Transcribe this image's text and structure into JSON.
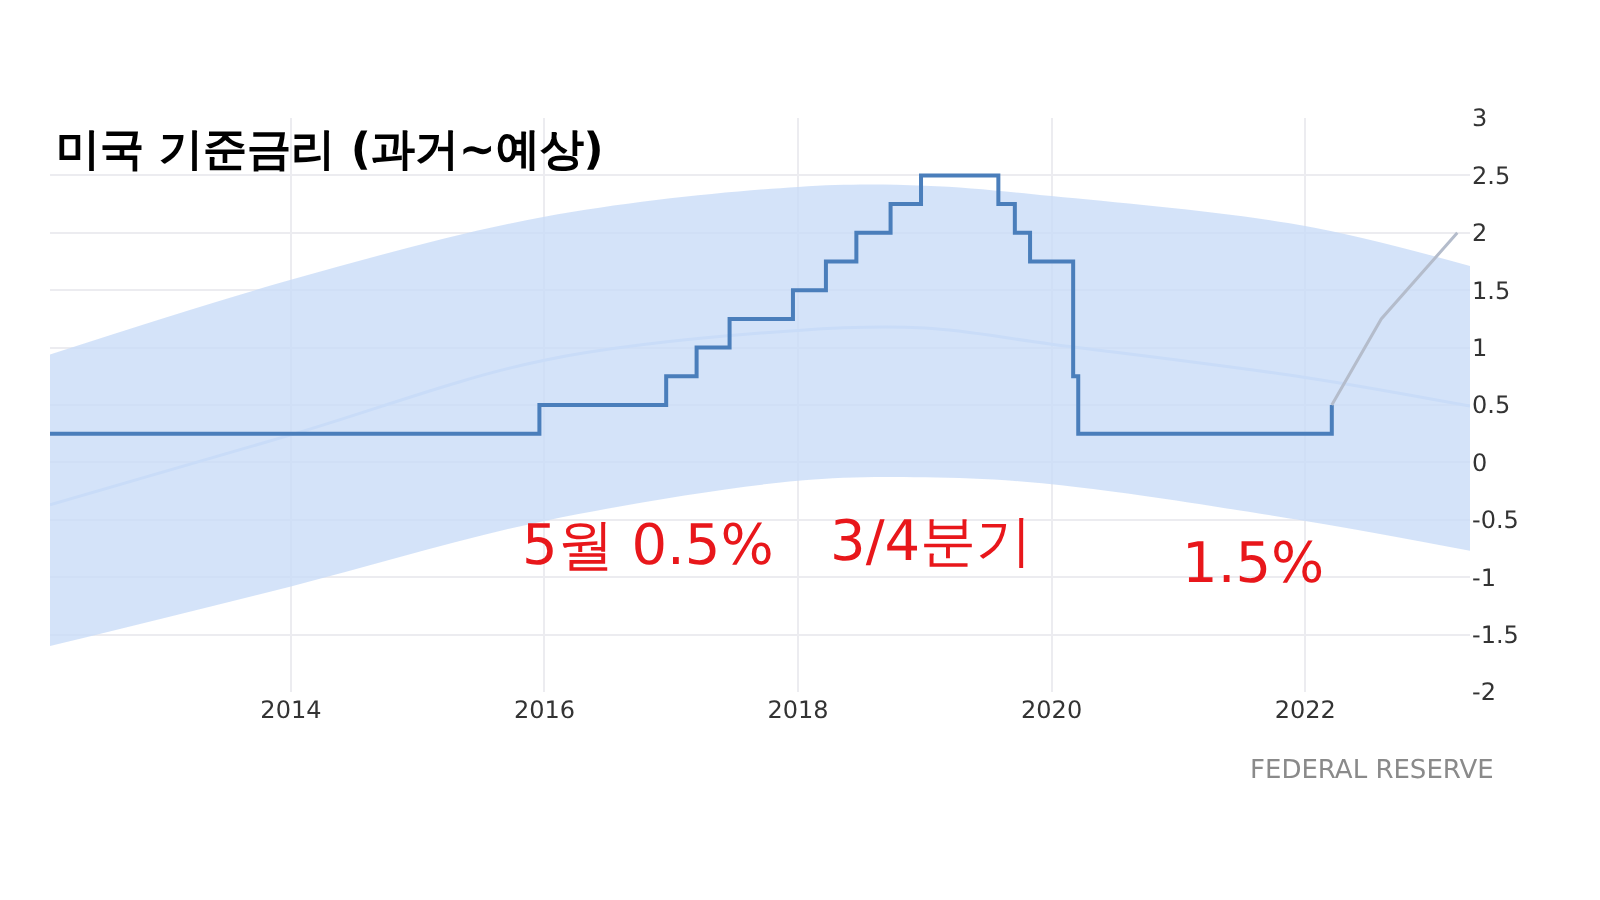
{
  "chart_data": {
    "type": "line",
    "title": "미국 기준금리 (과거~예상)",
    "xlim": [
      2012.1,
      2023.3
    ],
    "xticks": [
      2014,
      2016,
      2018,
      2020,
      2022
    ],
    "ylim": [
      -2,
      3
    ],
    "yticks": [
      -2,
      -1.5,
      -1,
      -0.5,
      0,
      0.5,
      1,
      1.5,
      2,
      2.5,
      3
    ],
    "grid": true,
    "series": [
      {
        "color": "#c9dcf8",
        "x": [
          2012.1,
          2014,
          2016,
          2018,
          2019,
          2020,
          2022,
          2023.3
        ],
        "values": [
          -0.37,
          0.24,
          0.89,
          1.15,
          1.17,
          1.03,
          0.74,
          0.49
        ],
        "lower": [
          -1.6,
          -1.08,
          -0.51,
          -0.16,
          -0.13,
          -0.19,
          -0.51,
          -0.77
        ],
        "upper": [
          0.94,
          1.59,
          2.14,
          2.4,
          2.41,
          2.32,
          2.06,
          1.71
        ]
      },
      {
        "type": "step",
        "color": "#4a7ebb",
        "x": [
          2012.1,
          2015.96,
          2016.96,
          2017.2,
          2017.46,
          2017.96,
          2018.22,
          2018.46,
          2018.73,
          2018.97,
          2019.58,
          2019.71,
          2019.83,
          2020.17,
          2020.21,
          2022.21
        ],
        "values": [
          0.25,
          0.5,
          0.75,
          1.0,
          1.25,
          1.5,
          1.75,
          2.0,
          2.25,
          2.5,
          2.25,
          2.0,
          1.75,
          0.75,
          0.25,
          0.5
        ]
      },
      {
        "color": "#b4bccb",
        "x": [
          2022.21,
          2022.6,
          2023.2
        ],
        "values": [
          0.5,
          1.25,
          2.0
        ]
      }
    ],
    "annotations": [
      "5월 0.5%",
      "3/4분기",
      "1.5%",
      "FEDERAL RESERVE"
    ]
  }
}
